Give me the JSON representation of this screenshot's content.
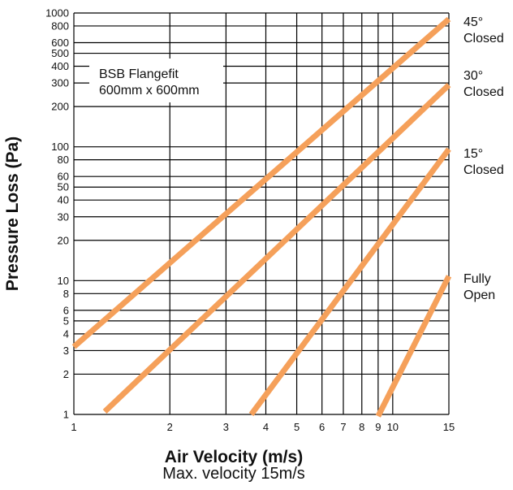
{
  "chart_data": {
    "type": "line",
    "x_scale": "log",
    "y_scale": "log",
    "xlim": [
      1,
      15
    ],
    "ylim": [
      1,
      1000
    ],
    "grid": true,
    "xlabel": "Air Velocity (m/s)",
    "x_subtitle": "Max. velocity 15m/s",
    "ylabel": "Pressure Loss (Pa)",
    "annotation": [
      "BSB Flangefit",
      "600mm x 600mm"
    ],
    "x_ticks": [
      1,
      2,
      3,
      4,
      5,
      6,
      7,
      8,
      9,
      10,
      15
    ],
    "x_tick_labels": [
      "1",
      "2",
      "3",
      "4",
      "5",
      "6",
      "7",
      "8",
      "9",
      "10",
      "15"
    ],
    "y_ticks": [
      1,
      2,
      3,
      4,
      5,
      6,
      8,
      10,
      20,
      30,
      40,
      50,
      60,
      80,
      100,
      200,
      300,
      400,
      500,
      600,
      800,
      1000
    ],
    "y_tick_labels": [
      "1",
      "2",
      "3",
      "4",
      "5",
      "6",
      "8",
      "10",
      "20",
      "30",
      "40",
      "50",
      "60",
      "80",
      "100",
      "200",
      "300",
      "400",
      "500",
      "600",
      "800",
      "1000"
    ],
    "line_color": "#F5A05A",
    "series": [
      {
        "name": [
          "45°",
          "Closed"
        ],
        "points": [
          [
            1,
            3.2
          ],
          [
            15,
            900
          ]
        ]
      },
      {
        "name": [
          "30°",
          "Closed"
        ],
        "points": [
          [
            1.25,
            1.05
          ],
          [
            15,
            290
          ]
        ]
      },
      {
        "name": [
          "15°",
          "Closed"
        ],
        "points": [
          [
            3.6,
            1.0
          ],
          [
            15,
            96
          ]
        ]
      },
      {
        "name": [
          "Fully",
          "Open"
        ],
        "points": [
          [
            9.0,
            0.97
          ],
          [
            15,
            10.8
          ]
        ]
      }
    ]
  }
}
